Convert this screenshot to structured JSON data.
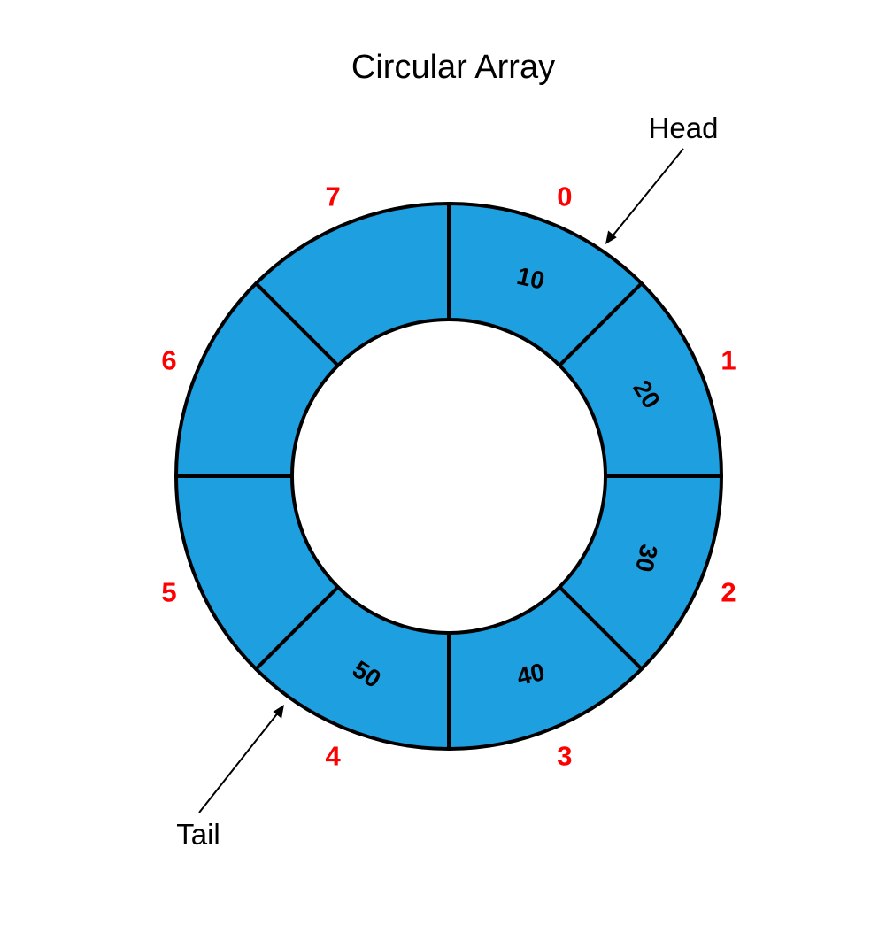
{
  "title": "Circular Array",
  "colors": {
    "segment_fill": "#1e9fe0",
    "outline": "#000000",
    "index_color": "#ff0000"
  },
  "cells": [
    {
      "index": "0",
      "value": "10"
    },
    {
      "index": "1",
      "value": "20"
    },
    {
      "index": "2",
      "value": "30"
    },
    {
      "index": "3",
      "value": "40"
    },
    {
      "index": "4",
      "value": "50"
    },
    {
      "index": "5",
      "value": ""
    },
    {
      "index": "6",
      "value": ""
    },
    {
      "index": "7",
      "value": ""
    }
  ],
  "head": {
    "label": "Head",
    "cell_index": 0
  },
  "tail": {
    "label": "Tail",
    "cell_index": 4
  }
}
